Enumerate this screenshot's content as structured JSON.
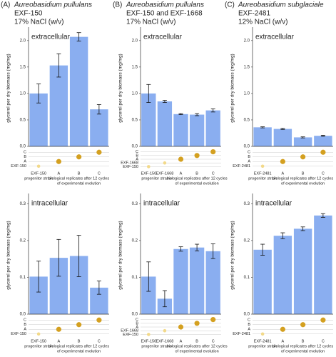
{
  "chart_data": [
    {
      "type": "bar",
      "panel_label": "(A)",
      "species": "Aureobasidium pullulans",
      "strain": "EXF-150",
      "condition": "17% NaCl (w/v)",
      "title": "extracellular",
      "ylabel": "glycerol per dry biomass (mg/mg)",
      "categories": [
        "EXF-150",
        "A",
        "B",
        "C"
      ],
      "values": [
        1.0,
        1.53,
        2.07,
        0.7
      ],
      "errors": [
        0.18,
        0.22,
        0.08,
        0.09
      ],
      "color": "#8aaef0",
      "ylim": [
        0,
        2.2
      ],
      "yticks": [
        {
          "value": 0,
          "label": "0.0"
        },
        0.5,
        {
          "value": 1,
          "label": "1.0"
        },
        1.5,
        {
          "value": 2,
          "label": "2.0"
        }
      ],
      "matrix_rows": [
        "C",
        "B",
        "A",
        "EXF-150"
      ],
      "group_labels": [
        "progenitor strain",
        "biological replicates after 12 cycles",
        "of experimental evolution"
      ]
    },
    {
      "type": "bar",
      "panel_label": "(B)",
      "species": "Aureobasidium pullulans",
      "strain": "EXF-150 and EXF-1668",
      "condition": "17% NaCl (w/v)",
      "title": "extracellular",
      "ylabel": "glycerol per dry biomass (mg/mg)",
      "categories": [
        "EXF-150",
        "EXF-1668",
        "A",
        "B",
        "C"
      ],
      "values": [
        1.0,
        0.85,
        0.61,
        0.6,
        0.68
      ],
      "errors": [
        0.17,
        0.02,
        0.01,
        0.02,
        0.03
      ],
      "color": "#8aaef0",
      "ylim": [
        0,
        2.2
      ],
      "yticks": [
        {
          "value": 0,
          "label": "0.0"
        },
        0.5,
        {
          "value": 1,
          "label": "1.0"
        },
        1.5,
        {
          "value": 2,
          "label": "2.0"
        }
      ],
      "matrix_rows": [
        "C",
        "B",
        "A",
        "EXF-1668",
        "EXF-150"
      ],
      "group_labels": [
        "progenitor strains",
        "biological replicates after 12 cycles",
        "of experimental evolution"
      ]
    },
    {
      "type": "bar",
      "panel_label": "(C)",
      "species": "Aureobasidium subglaciale",
      "strain": "EXF-2481",
      "condition": "12% NaCl (w/v)",
      "title": "extracellular",
      "ylabel": "glycerol per dry biomass (mg/mg)",
      "categories": [
        "EXF-2481",
        "A",
        "B",
        "C"
      ],
      "values": [
        0.36,
        0.33,
        0.17,
        0.2
      ],
      "errors": [
        0.01,
        0.01,
        0.01,
        0.01
      ],
      "color": "#8aaef0",
      "ylim": [
        0,
        2.2
      ],
      "yticks": [
        {
          "value": 0,
          "label": "0.0"
        },
        0.5,
        {
          "value": 1,
          "label": "1.0"
        },
        1.5,
        {
          "value": 2,
          "label": "2.0"
        }
      ],
      "matrix_rows": [
        "C",
        "B",
        "A",
        "EXF-2481"
      ],
      "group_labels": [
        "progenitor strain",
        "biological replicates after 12 cycles",
        "of experimental evolution"
      ]
    },
    {
      "type": "bar",
      "title": "intracellular",
      "ylabel": "glycerol per dry biomass (mg/mg)",
      "categories": [
        "EXF-150",
        "A",
        "B",
        "C"
      ],
      "values": [
        0.102,
        0.153,
        0.158,
        0.072
      ],
      "errors": [
        0.042,
        0.05,
        0.056,
        0.018
      ],
      "color": "#8aaef0",
      "ylim": [
        0,
        0.32
      ],
      "yticks": [
        {
          "value": 0,
          "label": "0.0"
        },
        0.1,
        0.2,
        0.3
      ],
      "matrix_rows": [
        "C",
        "B",
        "A",
        "EXF-150"
      ],
      "group_labels": [
        "progenitor strain",
        "biological replicates after 12 cycles",
        "of experimental evolution"
      ]
    },
    {
      "type": "bar",
      "title": "intracellular",
      "ylabel": "glycerol per dry biomass (mg/mg)",
      "categories": [
        "EXF-150",
        "EXF-1668",
        "A",
        "B",
        "C"
      ],
      "values": [
        0.102,
        0.042,
        0.177,
        0.181,
        0.171
      ],
      "errors": [
        0.04,
        0.022,
        0.006,
        0.009,
        0.02
      ],
      "color": "#8aaef0",
      "ylim": [
        0,
        0.32
      ],
      "yticks": [
        {
          "value": 0,
          "label": "0.0"
        },
        0.1,
        0.2,
        0.3
      ],
      "matrix_rows": [
        "C",
        "B",
        "A",
        "EXF-1668",
        "EXF-150"
      ],
      "group_labels": [
        "progenitor strains",
        "biological replicates after 12 cycles",
        "of experimental evolution"
      ]
    },
    {
      "type": "bar",
      "title": "intracellular",
      "ylabel": "glycerol per dry biomass (mg/mg)",
      "categories": [
        "EXF-2481",
        "A",
        "B",
        "C"
      ],
      "values": [
        0.175,
        0.213,
        0.232,
        0.268
      ],
      "errors": [
        0.015,
        0.008,
        0.005,
        0.005
      ],
      "color": "#8aaef0",
      "ylim": [
        0,
        0.32
      ],
      "yticks": [
        {
          "value": 0,
          "label": "0.0"
        },
        0.1,
        0.2,
        0.3
      ],
      "matrix_rows": [
        "C",
        "B",
        "A",
        "EXF-2481"
      ],
      "group_labels": [
        "progenitor strain",
        "biological replicates after 12 cycles",
        "of experimental evolution"
      ]
    }
  ]
}
